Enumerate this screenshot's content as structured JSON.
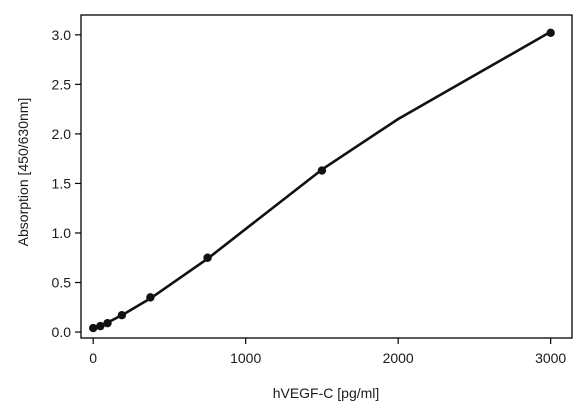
{
  "chart_data": {
    "type": "line",
    "title": "",
    "xlabel": "hVEGF-C [pg/ml]",
    "ylabel": "Absorption [450/630nm]",
    "xlim": [
      -80,
      3140
    ],
    "ylim": [
      -0.06,
      3.2
    ],
    "x_ticks": [
      0,
      1000,
      2000,
      3000
    ],
    "x_tick_labels": [
      "0",
      "1000",
      "2000",
      "3000"
    ],
    "y_ticks": [
      0.0,
      0.5,
      1.0,
      1.5,
      2.0,
      2.5,
      3.0
    ],
    "y_tick_labels": [
      "0.0",
      "0.5",
      "1.0",
      "1.5",
      "2.0",
      "2.5",
      "3.0"
    ],
    "grid": false,
    "legend": "none",
    "series": [
      {
        "points": [
          {
            "x": 0,
            "y": 0.04
          },
          {
            "x": 47,
            "y": 0.06
          },
          {
            "x": 94,
            "y": 0.09
          },
          {
            "x": 188,
            "y": 0.17
          },
          {
            "x": 375,
            "y": 0.35
          },
          {
            "x": 750,
            "y": 0.75
          },
          {
            "x": 1500,
            "y": 1.63
          },
          {
            "x": 3000,
            "y": 3.02
          }
        ],
        "fit_line": [
          {
            "x": 0,
            "y": 0.03
          },
          {
            "x": 100,
            "y": 0.1
          },
          {
            "x": 200,
            "y": 0.18
          },
          {
            "x": 375,
            "y": 0.34
          },
          {
            "x": 750,
            "y": 0.74
          },
          {
            "x": 1100,
            "y": 1.16
          },
          {
            "x": 1500,
            "y": 1.64
          },
          {
            "x": 2000,
            "y": 2.15
          },
          {
            "x": 2500,
            "y": 2.59
          },
          {
            "x": 3000,
            "y": 3.03
          }
        ],
        "color": "#111111"
      }
    ]
  }
}
